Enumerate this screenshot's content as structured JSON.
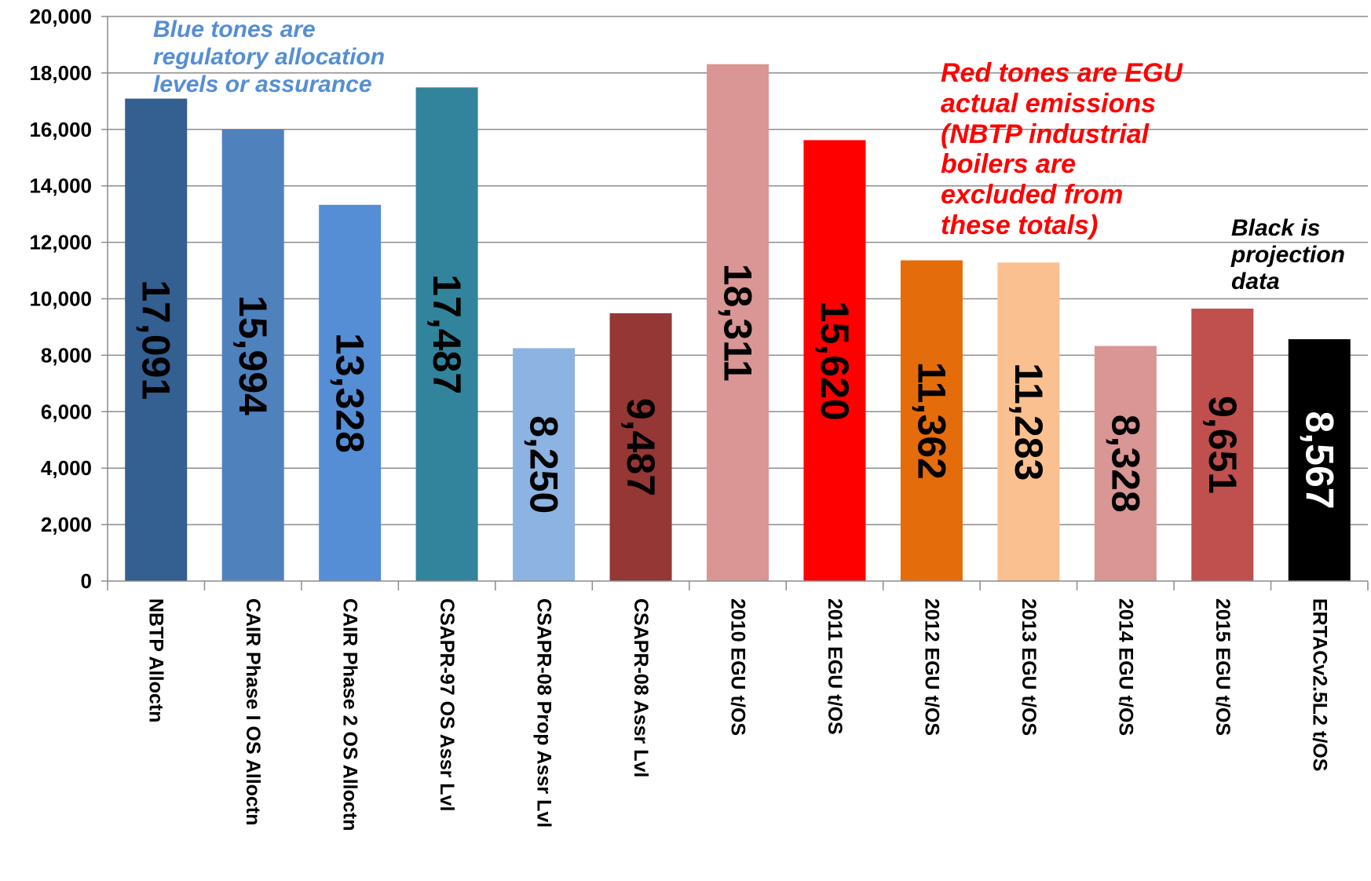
{
  "chart_data": {
    "type": "bar",
    "categories": [
      "NBTP Alloctn",
      "CAIR Phase I OS Alloctn",
      "CAIR Phase 2 OS Alloctn",
      "CSAPR-97 OS Assr Lvl",
      "CSAPR-08 Prop Assr Lvl",
      "CSAPR-08 Assr Lvl",
      "2010 EGU t/OS",
      "2011 EGU t/OS",
      "2012 EGU t/OS",
      "2013 EGU t/OS",
      "2014 EGU t/OS",
      "2015 EGU t/OS",
      "ERTACv2.5L2 t/OS"
    ],
    "values": [
      17091,
      15994,
      13328,
      17487,
      8250,
      9487,
      18311,
      15620,
      11362,
      11283,
      8328,
      9651,
      8567
    ],
    "data_labels": [
      "17,091",
      "15,994",
      "13,328",
      "17,487",
      "8,250",
      "9,487",
      "18,311",
      "15,620",
      "11,362",
      "11,283",
      "8,328",
      "9,651",
      "8,567"
    ],
    "bar_colors": [
      "#335f91",
      "#4f81bd",
      "#558ed5",
      "#31849b",
      "#8db3e2",
      "#953735",
      "#d99694",
      "#ff0000",
      "#e46c0a",
      "#fac090",
      "#d99694",
      "#c0504d",
      "#000000"
    ],
    "label_colors": [
      "#000000",
      "#000000",
      "#000000",
      "#000000",
      "#000000",
      "#000000",
      "#000000",
      "#000000",
      "#000000",
      "#000000",
      "#000000",
      "#000000",
      "#ffffff"
    ],
    "ylim": [
      0,
      20000
    ],
    "yticks": [
      0,
      2000,
      4000,
      6000,
      8000,
      10000,
      12000,
      14000,
      16000,
      18000,
      20000
    ],
    "ytick_labels": [
      "0",
      "2,000",
      "4,000",
      "6,000",
      "8,000",
      "10,000",
      "12,000",
      "14,000",
      "16,000",
      "18,000",
      "20,000"
    ],
    "grid": true,
    "title": "",
    "xlabel": "",
    "ylabel": ""
  },
  "annotations": {
    "blue": {
      "lines": [
        "Blue tones are",
        "regulatory allocation",
        "levels or assurance"
      ],
      "color": "#558ed5"
    },
    "red": {
      "lines": [
        "Red tones are EGU",
        "actual emissions",
        "(NBTP industrial",
        "boilers are",
        "excluded from",
        "these totals)"
      ],
      "color": "#ff0000"
    },
    "black": {
      "lines": [
        "Black is",
        "projection",
        "data"
      ],
      "color": "#000000"
    }
  }
}
